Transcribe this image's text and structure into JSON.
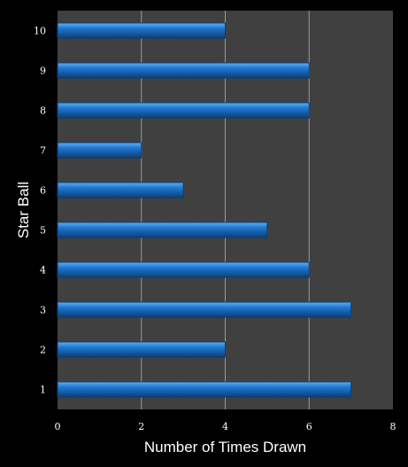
{
  "chart_data": {
    "type": "bar",
    "orientation": "horizontal",
    "title": "",
    "xlabel": "Number of Times Drawn",
    "ylabel": "Star Ball",
    "categories": [
      "1",
      "2",
      "3",
      "4",
      "5",
      "6",
      "7",
      "8",
      "9",
      "10"
    ],
    "values": [
      7,
      4,
      7,
      6,
      5,
      3,
      2,
      6,
      6,
      4
    ],
    "xlim": [
      0,
      8
    ],
    "xticks": [
      "0",
      "2",
      "4",
      "6",
      "8"
    ],
    "grid": "vertical",
    "legend": "none",
    "colors": {
      "background": "#000000",
      "plot_area": "#404040",
      "bar": "#1f78d1",
      "bar_highlight": "#5fb0f0",
      "bar_edge": "#0d3f78",
      "gridline": "#9a9a9a",
      "text": "#ffffff"
    }
  }
}
